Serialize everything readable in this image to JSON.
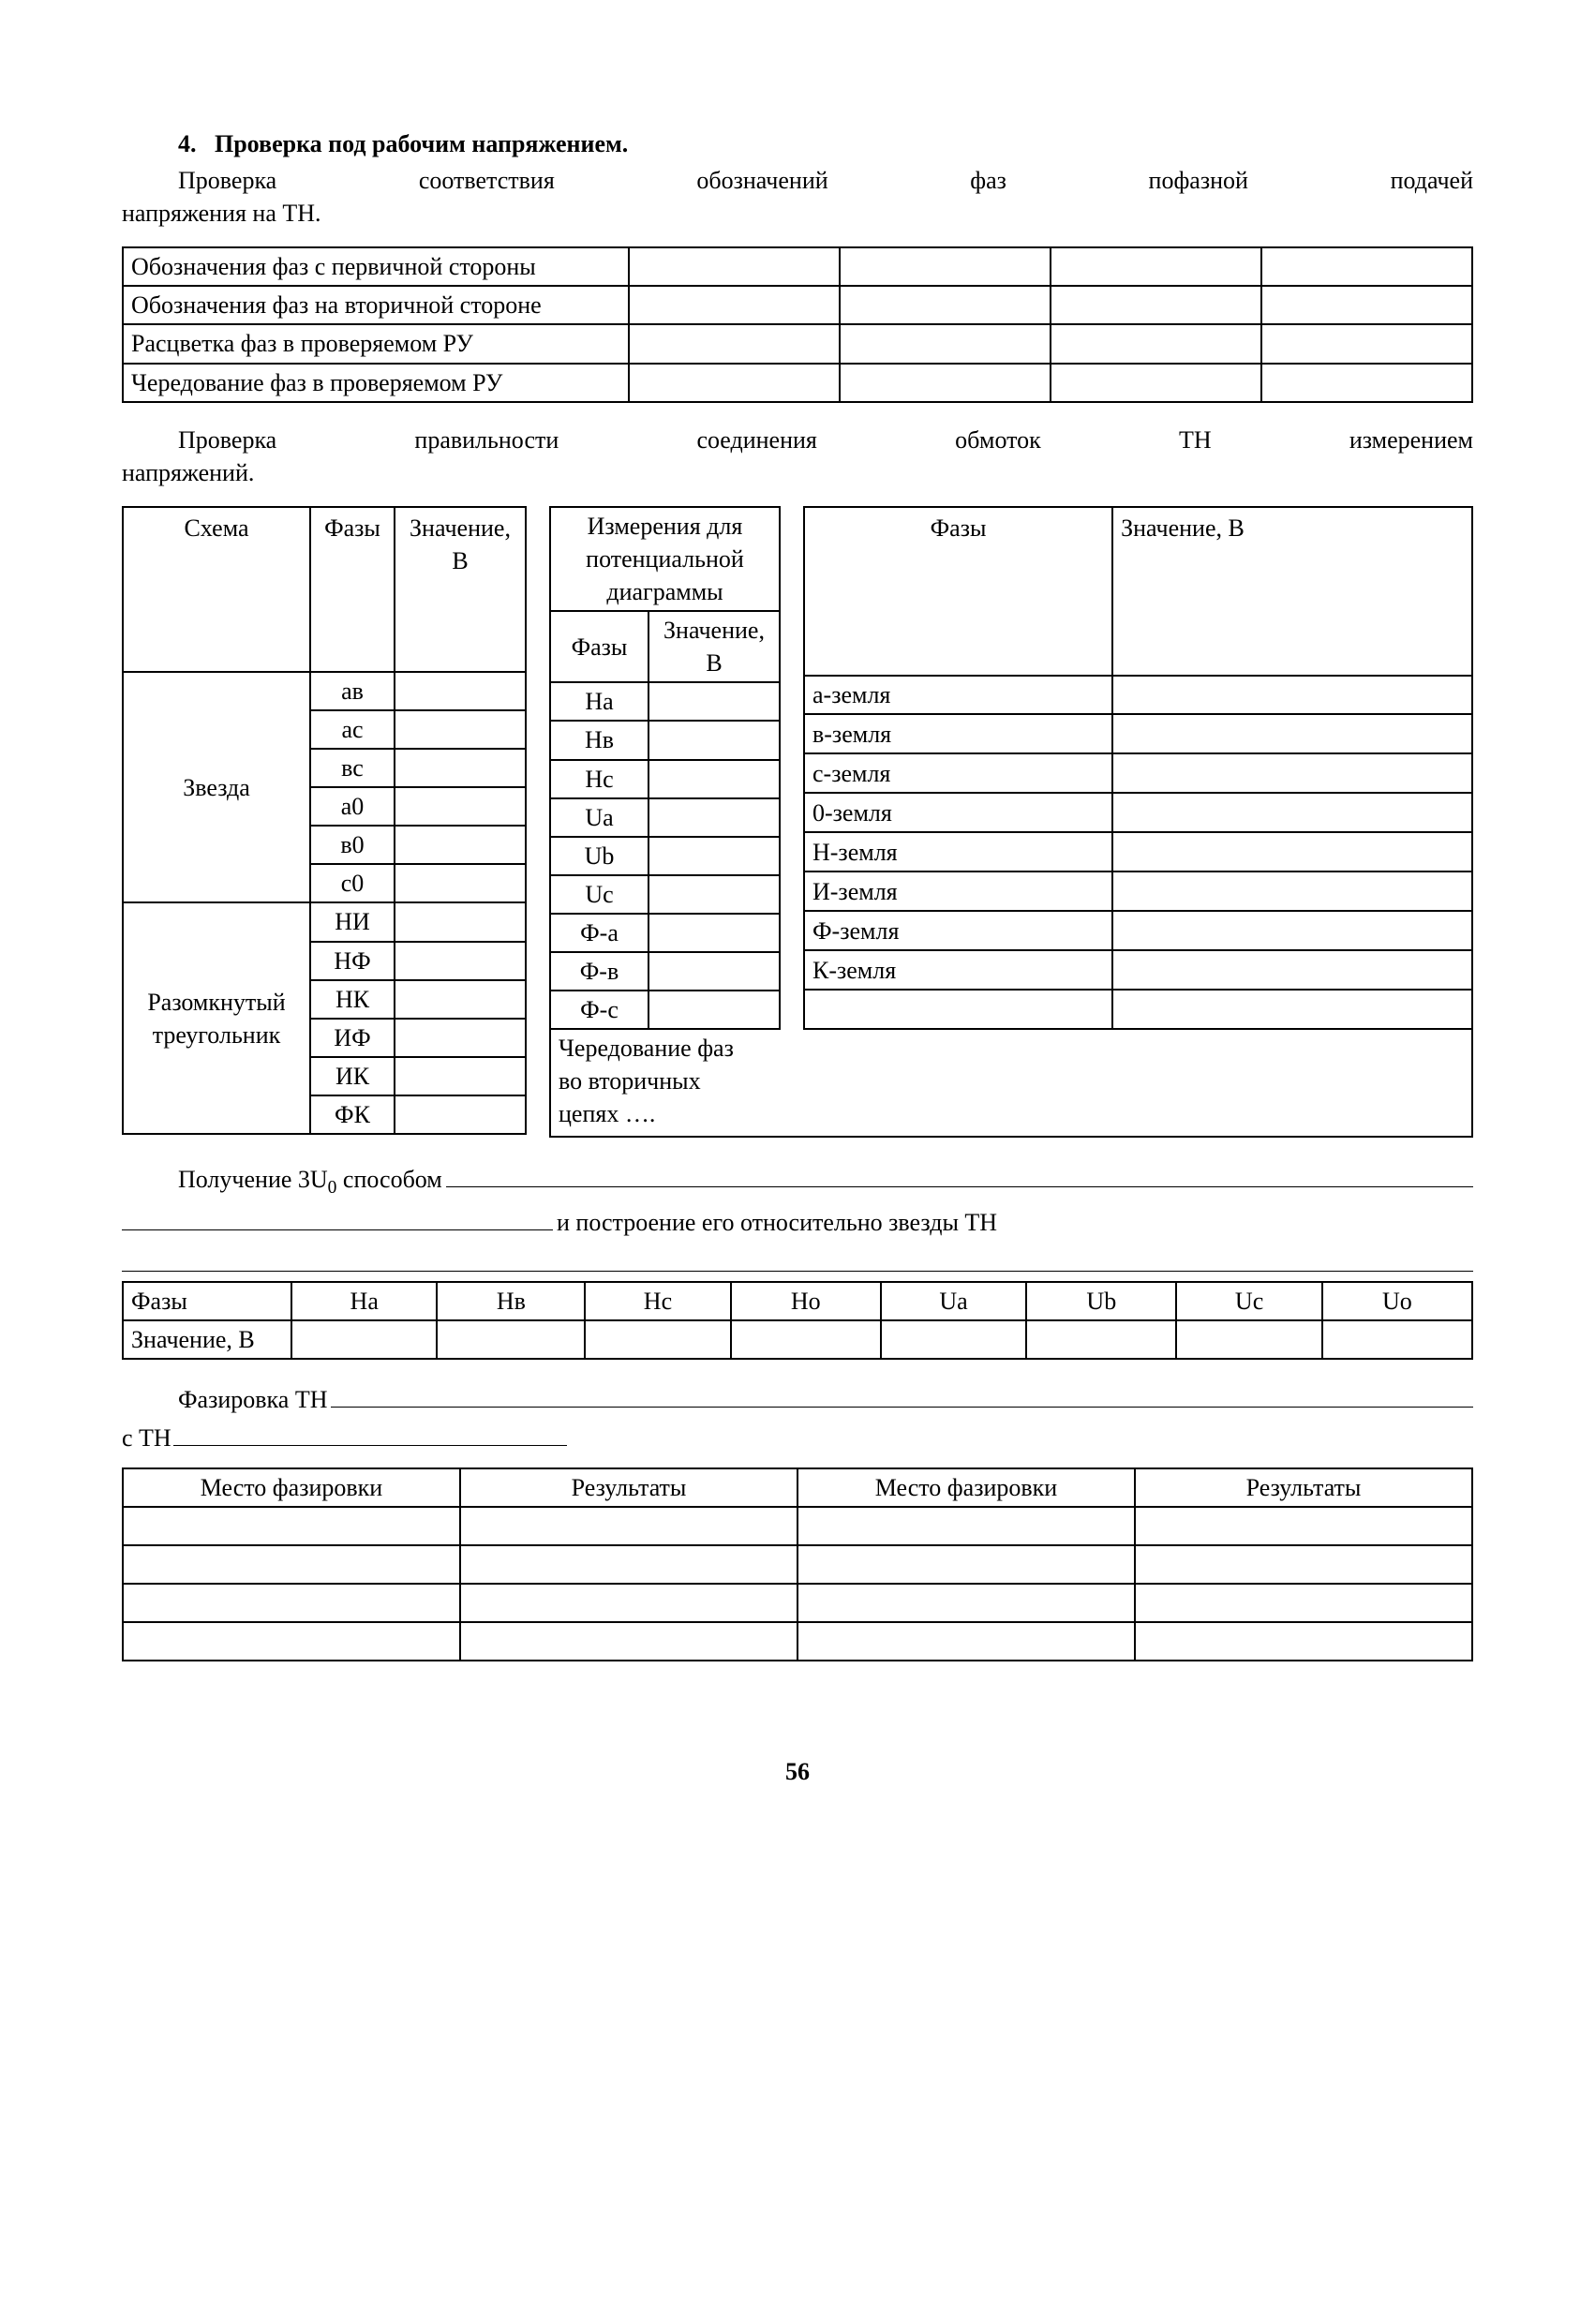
{
  "header": {
    "number": "4.",
    "title": "Проверка под рабочим напряжением."
  },
  "para1_line1": "Проверка соответствия обозначений фаз пофазной подачей",
  "para1_line2": "напряжения на ТН.",
  "table1_rows": [
    "Обозначения фаз с первичной стороны",
    "Обозначения фаз на вторичной стороне",
    "Расцветка фаз в проверяемом РУ",
    "Чередование фаз в проверяемом РУ"
  ],
  "para2_line1": "Проверка правильности соединения обмоток ТН измерением",
  "para2_line2": "напряжений.",
  "tL": {
    "head": {
      "scheme": "Схема",
      "phases": "Фазы",
      "value": "Значение, В"
    },
    "star_label": "Звезда",
    "star_rows": [
      "ав",
      "ас",
      "вс",
      "а0",
      "в0",
      "с0"
    ],
    "tri_label_l1": "Разомкнутый",
    "tri_label_l2": "треугольник",
    "tri_rows": [
      "НИ",
      "НФ",
      "НК",
      "ИФ",
      "ИК",
      "ФК"
    ]
  },
  "tM": {
    "head1_l1": "Измерения для",
    "head1_l2": "потенциальной",
    "head1_l3": "диаграммы",
    "head2_ph": "Фазы",
    "head2_val": "Значение, В",
    "rows": [
      "На",
      "Нв",
      "Нс",
      "Uа",
      "Ub",
      "Uс",
      "Ф-а",
      "Ф-в",
      "Ф-с"
    ]
  },
  "tR": {
    "head_ph": "Фазы",
    "head_val": "Значение, В",
    "rows": [
      "а-земля",
      "в-земля",
      "с-земля",
      "0-земля",
      "Н-земля",
      "И-земля",
      "Ф-земля",
      "К-земля"
    ]
  },
  "phase_rot_l1": "Чередование фаз",
  "phase_rot_l2": "во вторичных",
  "phase_rot_l3": "цепях ….",
  "line_3U0_prefix": "Получение 3U",
  "line_3U0_sub": "0",
  "line_3U0_suffix": " способом ",
  "line_postroenie": "и построение его относительно звезды ТН",
  "t4": {
    "row1_label": "Фазы",
    "row1": [
      "На",
      "Нв",
      "Нс",
      "Но",
      "Uа",
      "Ub",
      "Uс",
      "Uо"
    ],
    "row2_label": "Значение, В"
  },
  "fazirovka_label": "Фазировка  ТН ",
  "s_tn_label": "с ТН",
  "t5": {
    "h1": "Место фазировки",
    "h2": "Результаты",
    "h3": "Место фазировки",
    "h4": "Результаты",
    "blank_rows": 4
  },
  "page_number": "56"
}
